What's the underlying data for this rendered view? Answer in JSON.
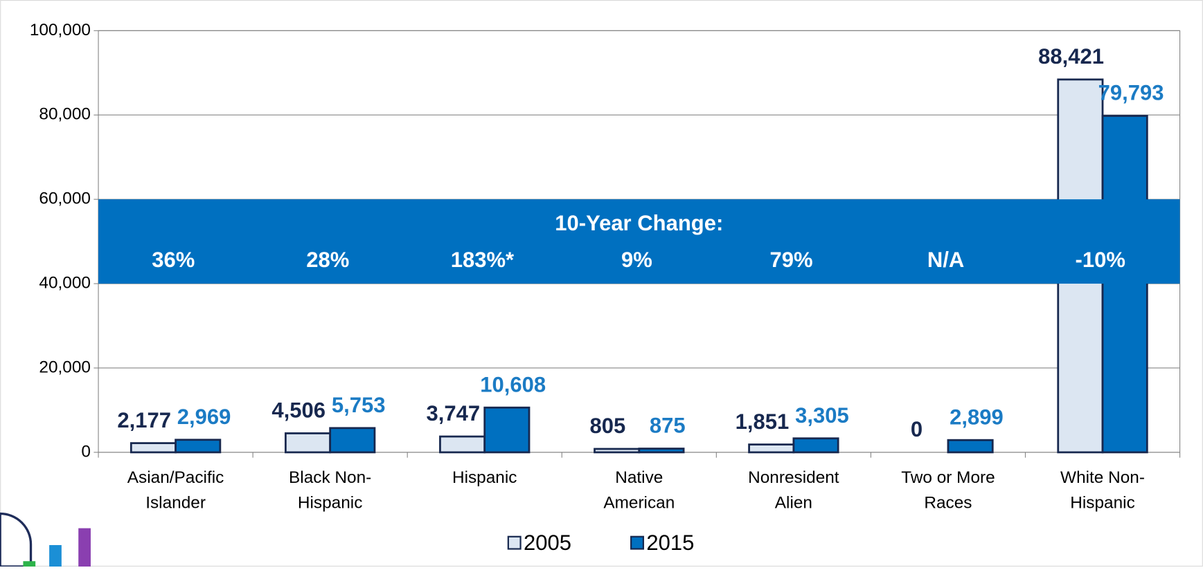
{
  "chart_data": {
    "type": "bar",
    "categories": [
      [
        "Asian/Pacific",
        "Islander"
      ],
      [
        "Black Non-",
        "Hispanic"
      ],
      [
        "Hispanic"
      ],
      [
        "Native",
        "American"
      ],
      [
        "Nonresident",
        "Alien"
      ],
      [
        "Two or More",
        "Races"
      ],
      [
        "White Non-",
        "Hispanic"
      ]
    ],
    "series": [
      {
        "name": "2005",
        "color": "#dce6f2",
        "label_color": "#17284f",
        "values": [
          2177,
          4506,
          3747,
          805,
          1851,
          0,
          88421
        ],
        "value_labels": [
          "2,177",
          "4,506",
          "3,747",
          "805",
          "1,851",
          "0",
          "88,421"
        ]
      },
      {
        "name": "2015",
        "color": "#0070c0",
        "label_color": "#1b7bc4",
        "values": [
          2969,
          5753,
          10608,
          875,
          3305,
          2899,
          79793
        ],
        "value_labels": [
          "2,969",
          "5,753",
          "10,608",
          "875",
          "3,305",
          "2,899",
          "79,793"
        ]
      }
    ],
    "ylim": [
      0,
      100000
    ],
    "yticks": [
      {
        "value": 0,
        "label": "0"
      },
      {
        "value": 20000,
        "label": "20,000"
      },
      {
        "value": 40000,
        "label": "40,000"
      },
      {
        "value": 60000,
        "label": "60,000"
      },
      {
        "value": 80000,
        "label": "80,000"
      },
      {
        "value": 100000,
        "label": "100,000"
      }
    ],
    "grid": true,
    "annotation": {
      "title": "10-Year Change:",
      "changes": [
        "36%",
        "28%",
        "183%*",
        "9%",
        "79%",
        "N/A",
        "-10%"
      ],
      "color": "#0070c0"
    },
    "legend": "bottom"
  }
}
